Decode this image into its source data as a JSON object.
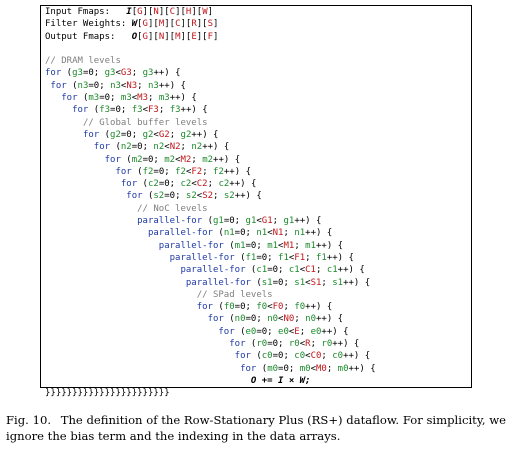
{
  "figure": {
    "lines": [
      [
        {
          "t": "Input Fmaps:   ",
          "c": ""
        },
        {
          "t": "I",
          "c": "it"
        },
        {
          "t": "[",
          "c": ""
        },
        {
          "t": "G",
          "c": "rd"
        },
        {
          "t": "][",
          "c": ""
        },
        {
          "t": "N",
          "c": "rd"
        },
        {
          "t": "][",
          "c": ""
        },
        {
          "t": "C",
          "c": "rd"
        },
        {
          "t": "][",
          "c": ""
        },
        {
          "t": "H",
          "c": "rd"
        },
        {
          "t": "][",
          "c": ""
        },
        {
          "t": "W",
          "c": "rd"
        },
        {
          "t": "]",
          "c": ""
        }
      ],
      [
        {
          "t": "Filter Weights: ",
          "c": ""
        },
        {
          "t": "W",
          "c": "it"
        },
        {
          "t": "[",
          "c": ""
        },
        {
          "t": "G",
          "c": "rd"
        },
        {
          "t": "][",
          "c": ""
        },
        {
          "t": "M",
          "c": "rd"
        },
        {
          "t": "][",
          "c": ""
        },
        {
          "t": "C",
          "c": "rd"
        },
        {
          "t": "][",
          "c": ""
        },
        {
          "t": "R",
          "c": "rd"
        },
        {
          "t": "][",
          "c": ""
        },
        {
          "t": "S",
          "c": "rd"
        },
        {
          "t": "]",
          "c": ""
        }
      ],
      [
        {
          "t": "Output Fmaps:   ",
          "c": ""
        },
        {
          "t": "O",
          "c": "it"
        },
        {
          "t": "[",
          "c": ""
        },
        {
          "t": "G",
          "c": "rd"
        },
        {
          "t": "][",
          "c": ""
        },
        {
          "t": "N",
          "c": "rd"
        },
        {
          "t": "][",
          "c": ""
        },
        {
          "t": "M",
          "c": "rd"
        },
        {
          "t": "][",
          "c": ""
        },
        {
          "t": "E",
          "c": "rd"
        },
        {
          "t": "][",
          "c": ""
        },
        {
          "t": "F",
          "c": "rd"
        },
        {
          "t": "]",
          "c": ""
        }
      ],
      [
        {
          "t": "",
          "c": ""
        }
      ],
      [
        {
          "t": "// DRAM levels",
          "c": "cm"
        }
      ],
      [
        {
          "t": "for",
          "c": "kw"
        },
        {
          "t": " (",
          "c": ""
        },
        {
          "t": "g3",
          "c": "vr"
        },
        {
          "t": "=0; ",
          "c": ""
        },
        {
          "t": "g3",
          "c": "vr"
        },
        {
          "t": "<",
          "c": ""
        },
        {
          "t": "G3",
          "c": "rd"
        },
        {
          "t": "; ",
          "c": ""
        },
        {
          "t": "g3",
          "c": "vr"
        },
        {
          "t": "++) {",
          "c": ""
        }
      ],
      [
        {
          "t": " ",
          "c": ""
        },
        {
          "t": "for",
          "c": "kw"
        },
        {
          "t": " (",
          "c": ""
        },
        {
          "t": "n3",
          "c": "vr"
        },
        {
          "t": "=0; ",
          "c": ""
        },
        {
          "t": "n3",
          "c": "vr"
        },
        {
          "t": "<",
          "c": ""
        },
        {
          "t": "N3",
          "c": "rd"
        },
        {
          "t": "; ",
          "c": ""
        },
        {
          "t": "n3",
          "c": "vr"
        },
        {
          "t": "++) {",
          "c": ""
        }
      ],
      [
        {
          "t": "   ",
          "c": ""
        },
        {
          "t": "for",
          "c": "kw"
        },
        {
          "t": " (",
          "c": ""
        },
        {
          "t": "m3",
          "c": "vr"
        },
        {
          "t": "=0; ",
          "c": ""
        },
        {
          "t": "m3",
          "c": "vr"
        },
        {
          "t": "<",
          "c": ""
        },
        {
          "t": "M3",
          "c": "rd"
        },
        {
          "t": "; ",
          "c": ""
        },
        {
          "t": "m3",
          "c": "vr"
        },
        {
          "t": "++) {",
          "c": ""
        }
      ],
      [
        {
          "t": "     ",
          "c": ""
        },
        {
          "t": "for",
          "c": "kw"
        },
        {
          "t": " (",
          "c": ""
        },
        {
          "t": "f3",
          "c": "vr"
        },
        {
          "t": "=0; ",
          "c": ""
        },
        {
          "t": "f3",
          "c": "vr"
        },
        {
          "t": "<",
          "c": ""
        },
        {
          "t": "F3",
          "c": "rd"
        },
        {
          "t": "; ",
          "c": ""
        },
        {
          "t": "f3",
          "c": "vr"
        },
        {
          "t": "++) {",
          "c": ""
        }
      ],
      [
        {
          "t": "       ",
          "c": ""
        },
        {
          "t": "// Global buffer levels",
          "c": "cm"
        }
      ],
      [
        {
          "t": "       ",
          "c": ""
        },
        {
          "t": "for",
          "c": "kw"
        },
        {
          "t": " (",
          "c": ""
        },
        {
          "t": "g2",
          "c": "vr"
        },
        {
          "t": "=0; ",
          "c": ""
        },
        {
          "t": "g2",
          "c": "vr"
        },
        {
          "t": "<",
          "c": ""
        },
        {
          "t": "G2",
          "c": "rd"
        },
        {
          "t": "; ",
          "c": ""
        },
        {
          "t": "g2",
          "c": "vr"
        },
        {
          "t": "++) {",
          "c": ""
        }
      ],
      [
        {
          "t": "         ",
          "c": ""
        },
        {
          "t": "for",
          "c": "kw"
        },
        {
          "t": " (",
          "c": ""
        },
        {
          "t": "n2",
          "c": "vr"
        },
        {
          "t": "=0; ",
          "c": ""
        },
        {
          "t": "n2",
          "c": "vr"
        },
        {
          "t": "<",
          "c": ""
        },
        {
          "t": "N2",
          "c": "rd"
        },
        {
          "t": "; ",
          "c": ""
        },
        {
          "t": "n2",
          "c": "vr"
        },
        {
          "t": "++) {",
          "c": ""
        }
      ],
      [
        {
          "t": "           ",
          "c": ""
        },
        {
          "t": "for",
          "c": "kw"
        },
        {
          "t": " (",
          "c": ""
        },
        {
          "t": "m2",
          "c": "vr"
        },
        {
          "t": "=0; ",
          "c": ""
        },
        {
          "t": "m2",
          "c": "vr"
        },
        {
          "t": "<",
          "c": ""
        },
        {
          "t": "M2",
          "c": "rd"
        },
        {
          "t": "; ",
          "c": ""
        },
        {
          "t": "m2",
          "c": "vr"
        },
        {
          "t": "++) {",
          "c": ""
        }
      ],
      [
        {
          "t": "             ",
          "c": ""
        },
        {
          "t": "for",
          "c": "kw"
        },
        {
          "t": " (",
          "c": ""
        },
        {
          "t": "f2",
          "c": "vr"
        },
        {
          "t": "=0; ",
          "c": ""
        },
        {
          "t": "f2",
          "c": "vr"
        },
        {
          "t": "<",
          "c": ""
        },
        {
          "t": "F2",
          "c": "rd"
        },
        {
          "t": "; ",
          "c": ""
        },
        {
          "t": "f2",
          "c": "vr"
        },
        {
          "t": "++) {",
          "c": ""
        }
      ],
      [
        {
          "t": "              ",
          "c": ""
        },
        {
          "t": "for",
          "c": "kw"
        },
        {
          "t": " (",
          "c": ""
        },
        {
          "t": "c2",
          "c": "vr"
        },
        {
          "t": "=0; ",
          "c": ""
        },
        {
          "t": "c2",
          "c": "vr"
        },
        {
          "t": "<",
          "c": ""
        },
        {
          "t": "C2",
          "c": "rd"
        },
        {
          "t": "; ",
          "c": ""
        },
        {
          "t": "c2",
          "c": "vr"
        },
        {
          "t": "++) {",
          "c": ""
        }
      ],
      [
        {
          "t": "               ",
          "c": ""
        },
        {
          "t": "for",
          "c": "kw"
        },
        {
          "t": " (",
          "c": ""
        },
        {
          "t": "s2",
          "c": "vr"
        },
        {
          "t": "=0; ",
          "c": ""
        },
        {
          "t": "s2",
          "c": "vr"
        },
        {
          "t": "<",
          "c": ""
        },
        {
          "t": "S2",
          "c": "rd"
        },
        {
          "t": "; ",
          "c": ""
        },
        {
          "t": "s2",
          "c": "vr"
        },
        {
          "t": "++) {",
          "c": ""
        }
      ],
      [
        {
          "t": "                 ",
          "c": ""
        },
        {
          "t": "// NoC levels",
          "c": "cm"
        }
      ],
      [
        {
          "t": "                 ",
          "c": ""
        },
        {
          "t": "parallel-for",
          "c": "kw"
        },
        {
          "t": " (",
          "c": ""
        },
        {
          "t": "g1",
          "c": "vr"
        },
        {
          "t": "=0; ",
          "c": ""
        },
        {
          "t": "g1",
          "c": "vr"
        },
        {
          "t": "<",
          "c": ""
        },
        {
          "t": "G1",
          "c": "rd"
        },
        {
          "t": "; ",
          "c": ""
        },
        {
          "t": "g1",
          "c": "vr"
        },
        {
          "t": "++) {",
          "c": ""
        }
      ],
      [
        {
          "t": "                   ",
          "c": ""
        },
        {
          "t": "parallel-for",
          "c": "kw"
        },
        {
          "t": " (",
          "c": ""
        },
        {
          "t": "n1",
          "c": "vr"
        },
        {
          "t": "=0; ",
          "c": ""
        },
        {
          "t": "n1",
          "c": "vr"
        },
        {
          "t": "<",
          "c": ""
        },
        {
          "t": "N1",
          "c": "rd"
        },
        {
          "t": "; ",
          "c": ""
        },
        {
          "t": "n1",
          "c": "vr"
        },
        {
          "t": "++) {",
          "c": ""
        }
      ],
      [
        {
          "t": "                     ",
          "c": ""
        },
        {
          "t": "parallel-for",
          "c": "kw"
        },
        {
          "t": " (",
          "c": ""
        },
        {
          "t": "m1",
          "c": "vr"
        },
        {
          "t": "=0; ",
          "c": ""
        },
        {
          "t": "m1",
          "c": "vr"
        },
        {
          "t": "<",
          "c": ""
        },
        {
          "t": "M1",
          "c": "rd"
        },
        {
          "t": "; ",
          "c": ""
        },
        {
          "t": "m1",
          "c": "vr"
        },
        {
          "t": "++) {",
          "c": ""
        }
      ],
      [
        {
          "t": "                       ",
          "c": ""
        },
        {
          "t": "parallel-for",
          "c": "kw"
        },
        {
          "t": " (",
          "c": ""
        },
        {
          "t": "f1",
          "c": "vr"
        },
        {
          "t": "=0; ",
          "c": ""
        },
        {
          "t": "f1",
          "c": "vr"
        },
        {
          "t": "<",
          "c": ""
        },
        {
          "t": "F1",
          "c": "rd"
        },
        {
          "t": "; ",
          "c": ""
        },
        {
          "t": "f1",
          "c": "vr"
        },
        {
          "t": "++) {",
          "c": ""
        }
      ],
      [
        {
          "t": "                         ",
          "c": ""
        },
        {
          "t": "parallel-for",
          "c": "kw"
        },
        {
          "t": " (",
          "c": ""
        },
        {
          "t": "c1",
          "c": "vr"
        },
        {
          "t": "=0; ",
          "c": ""
        },
        {
          "t": "c1",
          "c": "vr"
        },
        {
          "t": "<",
          "c": ""
        },
        {
          "t": "C1",
          "c": "rd"
        },
        {
          "t": "; ",
          "c": ""
        },
        {
          "t": "c1",
          "c": "vr"
        },
        {
          "t": "++) {",
          "c": ""
        }
      ],
      [
        {
          "t": "                          ",
          "c": ""
        },
        {
          "t": "parallel-for",
          "c": "kw"
        },
        {
          "t": " (",
          "c": ""
        },
        {
          "t": "s1",
          "c": "vr"
        },
        {
          "t": "=0; ",
          "c": ""
        },
        {
          "t": "s1",
          "c": "vr"
        },
        {
          "t": "<",
          "c": ""
        },
        {
          "t": "S1",
          "c": "rd"
        },
        {
          "t": "; ",
          "c": ""
        },
        {
          "t": "s1",
          "c": "vr"
        },
        {
          "t": "++) {",
          "c": ""
        }
      ],
      [
        {
          "t": "                            ",
          "c": ""
        },
        {
          "t": "// SPad levels",
          "c": "cm"
        }
      ],
      [
        {
          "t": "                            ",
          "c": ""
        },
        {
          "t": "for",
          "c": "kw"
        },
        {
          "t": " (",
          "c": ""
        },
        {
          "t": "f0",
          "c": "vr"
        },
        {
          "t": "=0; ",
          "c": ""
        },
        {
          "t": "f0",
          "c": "vr"
        },
        {
          "t": "<",
          "c": ""
        },
        {
          "t": "F0",
          "c": "rd"
        },
        {
          "t": "; ",
          "c": ""
        },
        {
          "t": "f0",
          "c": "vr"
        },
        {
          "t": "++) {",
          "c": ""
        }
      ],
      [
        {
          "t": "                              ",
          "c": ""
        },
        {
          "t": "for",
          "c": "kw"
        },
        {
          "t": " (",
          "c": ""
        },
        {
          "t": "n0",
          "c": "vr"
        },
        {
          "t": "=0; ",
          "c": ""
        },
        {
          "t": "n0",
          "c": "vr"
        },
        {
          "t": "<",
          "c": ""
        },
        {
          "t": "N0",
          "c": "rd"
        },
        {
          "t": "; ",
          "c": ""
        },
        {
          "t": "n0",
          "c": "vr"
        },
        {
          "t": "++) {",
          "c": ""
        }
      ],
      [
        {
          "t": "                                ",
          "c": ""
        },
        {
          "t": "for",
          "c": "kw"
        },
        {
          "t": " (",
          "c": ""
        },
        {
          "t": "e0",
          "c": "vr"
        },
        {
          "t": "=0; ",
          "c": ""
        },
        {
          "t": "e0",
          "c": "vr"
        },
        {
          "t": "<",
          "c": ""
        },
        {
          "t": "E",
          "c": "rd"
        },
        {
          "t": "; ",
          "c": ""
        },
        {
          "t": "e0",
          "c": "vr"
        },
        {
          "t": "++) {",
          "c": ""
        }
      ],
      [
        {
          "t": "                                  ",
          "c": ""
        },
        {
          "t": "for",
          "c": "kw"
        },
        {
          "t": " (",
          "c": ""
        },
        {
          "t": "r0",
          "c": "vr"
        },
        {
          "t": "=0; ",
          "c": ""
        },
        {
          "t": "r0",
          "c": "vr"
        },
        {
          "t": "<",
          "c": ""
        },
        {
          "t": "R",
          "c": "rd"
        },
        {
          "t": "; ",
          "c": ""
        },
        {
          "t": "r0",
          "c": "vr"
        },
        {
          "t": "++) {",
          "c": ""
        }
      ],
      [
        {
          "t": "                                   ",
          "c": ""
        },
        {
          "t": "for",
          "c": "kw"
        },
        {
          "t": " (",
          "c": ""
        },
        {
          "t": "c0",
          "c": "vr"
        },
        {
          "t": "=0; ",
          "c": ""
        },
        {
          "t": "c0",
          "c": "vr"
        },
        {
          "t": "<",
          "c": ""
        },
        {
          "t": "C0",
          "c": "rd"
        },
        {
          "t": "; ",
          "c": ""
        },
        {
          "t": "c0",
          "c": "vr"
        },
        {
          "t": "++) {",
          "c": ""
        }
      ],
      [
        {
          "t": "                                    ",
          "c": ""
        },
        {
          "t": "for",
          "c": "kw"
        },
        {
          "t": " (",
          "c": ""
        },
        {
          "t": "m0",
          "c": "vr"
        },
        {
          "t": "=0; ",
          "c": ""
        },
        {
          "t": "m0",
          "c": "vr"
        },
        {
          "t": "<",
          "c": ""
        },
        {
          "t": "M0",
          "c": "rd"
        },
        {
          "t": "; ",
          "c": ""
        },
        {
          "t": "m0",
          "c": "vr"
        },
        {
          "t": "++) {",
          "c": ""
        }
      ],
      [
        {
          "t": "                                      ",
          "c": ""
        },
        {
          "t": "O += I × W;",
          "c": "it"
        }
      ],
      [
        {
          "t": "}}}}}}}}}}}}}}}}}}}}}}}",
          "c": ""
        }
      ]
    ]
  },
  "caption": {
    "label": "Fig. 10.",
    "text": "The definition of the Row-Stationary Plus (RS+) dataflow. For simplicity, we ignore the bias term and the indexing in the data arrays."
  }
}
